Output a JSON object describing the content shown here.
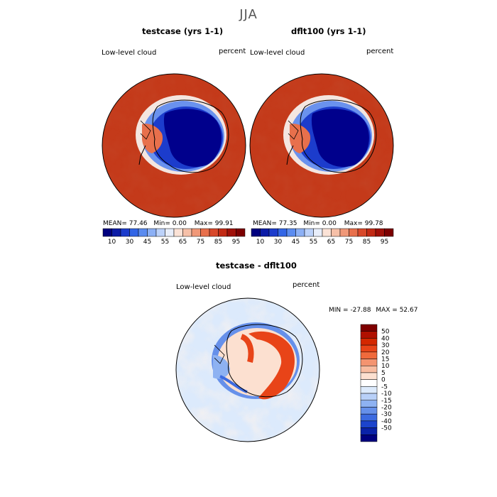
{
  "figure": {
    "season": "JJA",
    "panels": [
      {
        "title": "testcase (yrs 1-1)",
        "variable": "Low-level cloud",
        "units": "percent",
        "stats": {
          "mean_label": "MEAN=",
          "mean": "77.46",
          "min_label": "Min=",
          "min": "0.00",
          "max_label": "Max=",
          "max": "99.91"
        }
      },
      {
        "title": "dflt100 (yrs 1-1)",
        "variable": "Low-level cloud",
        "units": "percent",
        "stats": {
          "mean_label": "MEAN=",
          "mean": "77.35",
          "min_label": "Min=",
          "min": "0.00",
          "max_label": "Max=",
          "max": "99.78"
        }
      },
      {
        "title": "testcase - dflt100",
        "variable": "Low-level cloud",
        "units": "percent",
        "stats": {
          "min_label": "MIN =",
          "min": "-27.88",
          "max_label": "MAX =",
          "max": "52.67"
        }
      }
    ]
  },
  "colorbars": {
    "absolute": {
      "colors": [
        "#00007f",
        "#0c1ca6",
        "#1c3ccc",
        "#3366e6",
        "#5b8cf0",
        "#8cb0f5",
        "#bcd2fa",
        "#e8eefa",
        "#fbe2d6",
        "#f6c0a8",
        "#f09878",
        "#e8704c",
        "#d8482a",
        "#c22a14",
        "#a01008",
        "#7c0000"
      ],
      "tick_labels": [
        "10",
        "30",
        "45",
        "55",
        "65",
        "75",
        "85",
        "95"
      ]
    },
    "difference": {
      "colors": [
        "#7f0000",
        "#b01000",
        "#d42800",
        "#e84418",
        "#f06a3c",
        "#f49470",
        "#f8bca0",
        "#fce0d0",
        "#ffffff",
        "#dceafc",
        "#b8d0f8",
        "#8eb2f2",
        "#6690ea",
        "#3c6ae0",
        "#1c44cc",
        "#0a22a8",
        "#00007f"
      ],
      "tick_labels": [
        "50",
        "40",
        "30",
        "20",
        "15",
        "10",
        "5",
        "0",
        "-5",
        "-10",
        "-15",
        "-20",
        "-30",
        "-40",
        "-50"
      ]
    }
  }
}
